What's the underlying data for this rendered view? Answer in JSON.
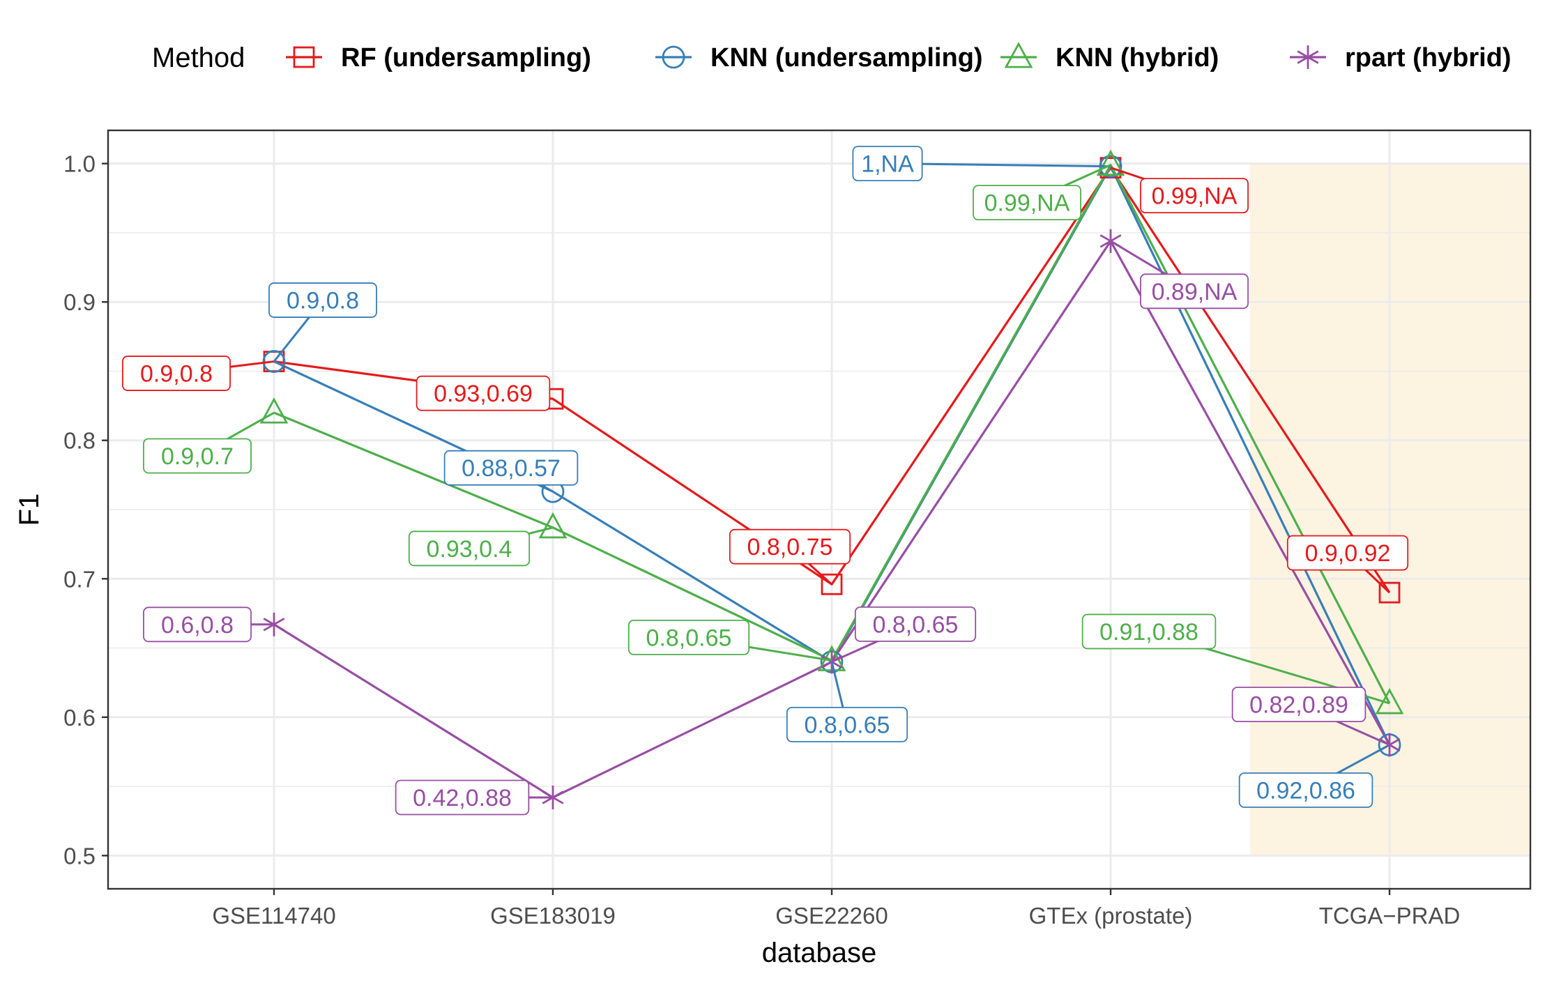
{
  "chart_data": {
    "type": "line",
    "xlabel": "database",
    "ylabel": "F1",
    "categories": [
      "GSE114740",
      "GSE183019",
      "GSE22260",
      "GTEx (prostate)",
      "TCGA−PRAD"
    ],
    "ylim": [
      0.476,
      1.024
    ],
    "yticks": [
      "0.5",
      "0.6",
      "0.7",
      "0.8",
      "0.9",
      "1.0"
    ],
    "grid": true,
    "legend": {
      "title": "Method",
      "position": "top"
    },
    "highlight": {
      "category": "TCGA−PRAD",
      "ymin": 0.5,
      "ymax": 1.0,
      "color": "#fdf3e1"
    },
    "series": [
      {
        "name": "RF (undersampling)",
        "color": "#e41a1c",
        "marker": "square",
        "values": [
          0.857,
          0.83,
          0.696,
          0.997,
          0.69
        ],
        "labels": [
          "0.9,0.8",
          "0.93,0.69",
          "0.8,0.75",
          "0.99,NA",
          "0.9,0.92"
        ]
      },
      {
        "name": "KNN (undersampling)",
        "color": "#377eb8",
        "marker": "circle",
        "values": [
          0.857,
          0.763,
          0.64,
          0.998,
          0.58
        ],
        "labels": [
          "0.9,0.8",
          "0.88,0.57",
          "0.8,0.65",
          "1,NA",
          "0.92,0.86"
        ]
      },
      {
        "name": "KNN (hybrid)",
        "color": "#4daf4a",
        "marker": "triangle",
        "values": [
          0.82,
          0.737,
          0.641,
          0.999,
          0.61
        ],
        "labels": [
          "0.9,0.7",
          "0.93,0.4",
          "0.8,0.65",
          "0.99,NA",
          "0.91,0.88"
        ]
      },
      {
        "name": "rpart (hybrid)",
        "color": "#984ea3",
        "marker": "asterisk",
        "values": [
          0.667,
          0.542,
          0.64,
          0.944,
          0.58
        ],
        "labels": [
          "0.6,0.8",
          "0.42,0.88",
          "0.8,0.65",
          "0.89,NA",
          "0.82,0.89"
        ]
      }
    ]
  }
}
